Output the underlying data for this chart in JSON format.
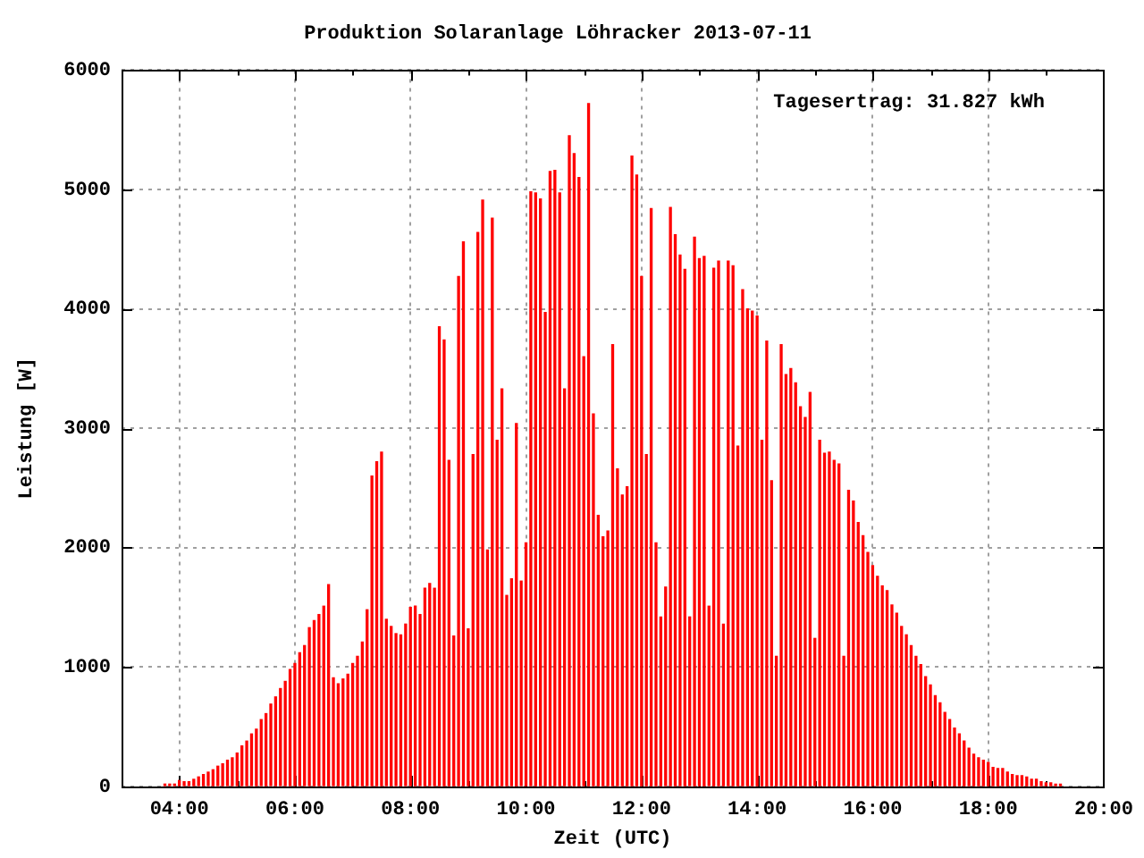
{
  "chart_data": {
    "type": "bar",
    "title": "Produktion Solaranlage Löhracker 2013-07-11",
    "xlabel": "Zeit (UTC)",
    "ylabel": "Leistung [W]",
    "annotations": [
      "Tagesertrag: 31.827 kWh"
    ],
    "color": "#ff0000",
    "grid": true,
    "xlim": [
      3,
      20
    ],
    "xticks": [
      {
        "value": 3,
        "label": null
      },
      {
        "value": 4,
        "label": "04:00"
      },
      {
        "value": 5,
        "label": null
      },
      {
        "value": 6,
        "label": "06:00"
      },
      {
        "value": 7,
        "label": null
      },
      {
        "value": 8,
        "label": "08:00"
      },
      {
        "value": 9,
        "label": null
      },
      {
        "value": 10,
        "label": "10:00"
      },
      {
        "value": 11,
        "label": null
      },
      {
        "value": 12,
        "label": "12:00"
      },
      {
        "value": 13,
        "label": null
      },
      {
        "value": 14,
        "label": "14:00"
      },
      {
        "value": 15,
        "label": null
      },
      {
        "value": 16,
        "label": "16:00"
      },
      {
        "value": 17,
        "label": null
      },
      {
        "value": 18,
        "label": "18:00"
      },
      {
        "value": 19,
        "label": null
      },
      {
        "value": 20,
        "label": "20:00"
      }
    ],
    "ylim": [
      0,
      6000
    ],
    "yticks": [
      0,
      1000,
      2000,
      3000,
      4000,
      5000,
      6000
    ],
    "x": [
      3.75,
      3.8333,
      3.9167,
      4,
      4.0833,
      4.1667,
      4.25,
      4.3333,
      4.4167,
      4.5,
      4.5833,
      4.6667,
      4.75,
      4.8333,
      4.9167,
      5,
      5.0833,
      5.1667,
      5.25,
      5.3333,
      5.4167,
      5.5,
      5.5833,
      5.6667,
      5.75,
      5.8333,
      5.9167,
      6,
      6.0833,
      6.1667,
      6.25,
      6.3333,
      6.4167,
      6.5,
      6.5833,
      6.6667,
      6.75,
      6.8333,
      6.9167,
      7,
      7.0833,
      7.1667,
      7.25,
      7.3333,
      7.4167,
      7.5,
      7.5833,
      7.6667,
      7.75,
      7.8333,
      7.9167,
      8,
      8.0833,
      8.1667,
      8.25,
      8.3333,
      8.4167,
      8.5,
      8.5833,
      8.6667,
      8.75,
      8.8333,
      8.9167,
      9,
      9.0833,
      9.1667,
      9.25,
      9.3333,
      9.4167,
      9.5,
      9.5833,
      9.6667,
      9.75,
      9.8333,
      9.9167,
      10,
      10.0833,
      10.1667,
      10.25,
      10.3333,
      10.4167,
      10.5,
      10.5833,
      10.6667,
      10.75,
      10.8333,
      10.9167,
      11,
      11.0833,
      11.1667,
      11.25,
      11.3333,
      11.4167,
      11.5,
      11.5833,
      11.6667,
      11.75,
      11.8333,
      11.9167,
      12,
      12.0833,
      12.1667,
      12.25,
      12.3333,
      12.4167,
      12.5,
      12.5833,
      12.6667,
      12.75,
      12.8333,
      12.9167,
      13,
      13.0833,
      13.1667,
      13.25,
      13.3333,
      13.4167,
      13.5,
      13.5833,
      13.6667,
      13.75,
      13.8333,
      13.9167,
      14,
      14.0833,
      14.1667,
      14.25,
      14.3333,
      14.4167,
      14.5,
      14.5833,
      14.6667,
      14.75,
      14.8333,
      14.9167,
      15,
      15.0833,
      15.1667,
      15.25,
      15.3333,
      15.4167,
      15.5,
      15.5833,
      15.6667,
      15.75,
      15.8333,
      15.9167,
      16,
      16.0833,
      16.1667,
      16.25,
      16.3333,
      16.4167,
      16.5,
      16.5833,
      16.6667,
      16.75,
      16.8333,
      16.9167,
      17,
      17.0833,
      17.1667,
      17.25,
      17.3333,
      17.4167,
      17.5,
      17.5833,
      17.6667,
      17.75,
      17.8333,
      17.9167,
      18,
      18.0833,
      18.1667,
      18.25,
      18.3333,
      18.4167,
      18.5,
      18.5833,
      18.6667,
      18.75,
      18.8333,
      18.9167,
      19,
      19.0833,
      19.1667,
      19.25
    ],
    "values": [
      20,
      20,
      20,
      50,
      40,
      40,
      60,
      80,
      100,
      120,
      140,
      170,
      190,
      220,
      240,
      280,
      340,
      380,
      440,
      480,
      560,
      610,
      690,
      750,
      820,
      880,
      980,
      1030,
      1120,
      1180,
      1330,
      1390,
      1440,
      1510,
      1690,
      910,
      860,
      900,
      940,
      1030,
      1090,
      1210,
      1480,
      2600,
      2720,
      2800,
      1400,
      1340,
      1280,
      1270,
      1360,
      1500,
      1510,
      1440,
      1660,
      1700,
      1660,
      3850,
      3740,
      2730,
      1260,
      4270,
      4560,
      1320,
      2780,
      4640,
      4910,
      1980,
      4760,
      2900,
      3330,
      1600,
      1740,
      3040,
      1720,
      2040,
      4980,
      4970,
      4920,
      3970,
      5150,
      5160,
      4970,
      3330,
      5450,
      5300,
      5100,
      3600,
      5720,
      3120,
      2270,
      2090,
      2140,
      3700,
      2660,
      2440,
      2510,
      5280,
      5120,
      4270,
      2780,
      4840,
      2040,
      1420,
      1670,
      4850,
      4620,
      4450,
      4330,
      1420,
      4600,
      4420,
      4440,
      1510,
      4340,
      4400,
      1360,
      4400,
      4360,
      2850,
      4160,
      4000,
      3980,
      3940,
      2900,
      3730,
      2560,
      1090,
      3700,
      3450,
      3500,
      3380,
      3180,
      3090,
      3300,
      1240,
      2900,
      2790,
      2800,
      2730,
      2700,
      1090,
      2480,
      2390,
      2210,
      2100,
      1960,
      1850,
      1760,
      1680,
      1640,
      1520,
      1450,
      1340,
      1270,
      1180,
      1090,
      1020,
      920,
      850,
      760,
      700,
      620,
      560,
      490,
      440,
      380,
      320,
      270,
      240,
      220,
      200,
      160,
      150,
      150,
      120,
      100,
      90,
      90,
      80,
      60,
      60,
      40,
      30,
      30,
      20,
      20
    ]
  }
}
